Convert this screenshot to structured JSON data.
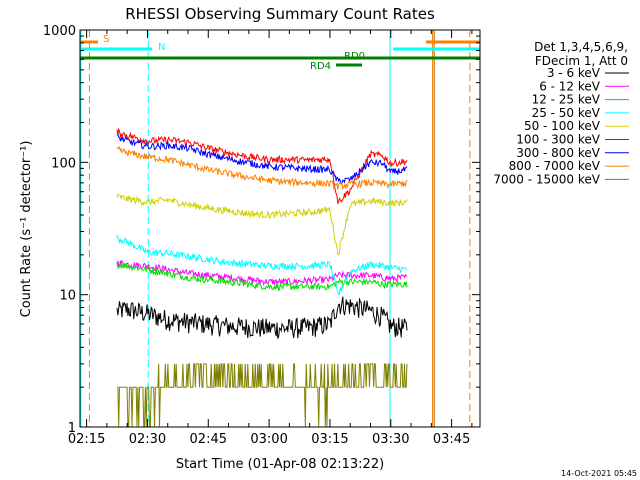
{
  "chart_data": {
    "type": "line",
    "title": "RHESSI Observing Summary Count Rates",
    "xlabel": "Start Time (01-Apr-08 02:13:22)",
    "ylabel": "Count Rate (s⁻¹ detector⁻¹)",
    "y_scale": "log",
    "ylim": [
      1,
      1000
    ],
    "xlim_minutes": [
      133.37,
      232
    ],
    "x_ticks": [
      {
        "label": "02:15",
        "minute": 135
      },
      {
        "label": "02:30",
        "minute": 150
      },
      {
        "label": "02:45",
        "minute": 165
      },
      {
        "label": "03:00",
        "minute": 180
      },
      {
        "label": "03:15",
        "minute": 195
      },
      {
        "label": "03:30",
        "minute": 210
      },
      {
        "label": "03:45",
        "minute": 225
      }
    ],
    "y_ticks": [
      {
        "label": "1",
        "value": 1
      },
      {
        "label": "10",
        "value": 10
      },
      {
        "label": "100",
        "value": 100
      },
      {
        "label": "1000",
        "value": 1000
      }
    ],
    "legend_header": [
      "Det 1,3,4,5,6,9,",
      "FDecim 1, Att 0"
    ],
    "legend_position": "right",
    "timestamp": "14-Oct-2021 05:45",
    "series": [
      {
        "name": "3 - 6 keV",
        "color": "#000000",
        "x": [
          142.5,
          145,
          150,
          155,
          160,
          165,
          170,
          175,
          180,
          185,
          190,
          195,
          197,
          200,
          205,
          208,
          210,
          214
        ],
        "y": [
          7.5,
          7.8,
          7.2,
          6.5,
          6.2,
          6.0,
          5.8,
          5.7,
          5.6,
          5.6,
          5.7,
          6.0,
          8.5,
          8.3,
          7.6,
          6.8,
          5.8,
          5.6
        ]
      },
      {
        "name": "6 - 12 keV",
        "color": "#ff00ff",
        "x": [
          142.5,
          145,
          150,
          155,
          160,
          165,
          170,
          175,
          180,
          185,
          190,
          195,
          197,
          200,
          205,
          208,
          210,
          214
        ],
        "y": [
          17.5,
          17,
          16.5,
          15.5,
          14.5,
          14,
          13.5,
          13,
          12.5,
          12.5,
          12.8,
          13,
          14,
          14,
          14,
          13.5,
          13.2,
          13.5
        ]
      },
      {
        "name": "12 - 25 keV",
        "color": "#00e000",
        "x": [
          142.5,
          145,
          150,
          155,
          160,
          165,
          170,
          175,
          180,
          185,
          190,
          195,
          197,
          200,
          205,
          208,
          210,
          214
        ],
        "y": [
          17,
          16.5,
          15.5,
          14.5,
          13.5,
          13,
          12.5,
          12,
          11.5,
          11.5,
          11.5,
          11.5,
          12.5,
          12.5,
          12.5,
          12,
          12,
          12
        ]
      },
      {
        "name": "25 - 50 keV",
        "color": "#00ffff",
        "x": [
          142.5,
          145,
          150,
          155,
          160,
          165,
          170,
          175,
          180,
          185,
          190,
          195,
          197,
          200,
          205,
          208,
          210,
          214
        ],
        "y": [
          27,
          25,
          21,
          20.5,
          19.5,
          18.5,
          17.5,
          17,
          16.5,
          16.5,
          16.5,
          17,
          10,
          15,
          17,
          16.5,
          16,
          15.5
        ]
      },
      {
        "name": "50 - 100 keV",
        "color": "#d0d000",
        "x": [
          142.5,
          145,
          150,
          155,
          160,
          165,
          170,
          175,
          180,
          185,
          190,
          195,
          197,
          200,
          205,
          208,
          210,
          214
        ],
        "y": [
          55,
          53,
          50,
          52,
          48,
          45,
          43,
          41,
          40,
          41,
          42,
          44,
          20,
          48,
          51,
          50,
          49,
          50
        ]
      },
      {
        "name": "100 - 300 keV",
        "color": "#ff0000",
        "x": [
          142.5,
          145,
          150,
          155,
          160,
          165,
          170,
          175,
          180,
          185,
          190,
          195,
          197,
          200,
          205,
          208,
          210,
          214
        ],
        "y": [
          170,
          160,
          145,
          148,
          142,
          128,
          118,
          110,
          105,
          105,
          104,
          106,
          50,
          62,
          115,
          112,
          98,
          102
        ]
      },
      {
        "name": "300 - 800 keV",
        "color": "#0000ff",
        "x": [
          142.5,
          145,
          150,
          155,
          160,
          165,
          170,
          175,
          180,
          185,
          190,
          195,
          197,
          200,
          205,
          208,
          210,
          214
        ],
        "y": [
          155,
          145,
          132,
          134,
          128,
          115,
          106,
          99,
          93,
          91,
          89,
          88,
          72,
          74,
          100,
          98,
          84,
          88
        ]
      },
      {
        "name": "800 - 7000 keV",
        "color": "#ff8000",
        "x": [
          142.5,
          145,
          150,
          155,
          160,
          165,
          170,
          175,
          180,
          185,
          190,
          195,
          197,
          200,
          205,
          208,
          210,
          214
        ],
        "y": [
          125,
          118,
          110,
          105,
          96,
          88,
          82,
          77,
          73,
          71,
          70,
          69,
          66,
          68,
          70,
          69,
          68,
          70
        ]
      },
      {
        "name": "7000 - 15000 keV",
        "color": "#808000",
        "x": [
          142.5,
          150,
          155,
          160,
          165,
          170,
          175,
          180,
          185,
          190,
          195,
          200,
          205,
          210,
          214
        ],
        "y": [
          1.6,
          1.7,
          2.3,
          2.4,
          2.5,
          2.4,
          2.3,
          2.2,
          2.1,
          2.0,
          2.1,
          2.3,
          2.5,
          2.2,
          2.4
        ]
      }
    ],
    "flag_markers": [
      {
        "label": "S",
        "color": "#ff8000"
      },
      {
        "label": "N",
        "color": "#00ffff"
      },
      {
        "label": "RD0",
        "color": "#008000"
      },
      {
        "label": "RD4",
        "color": "#008000"
      }
    ]
  }
}
